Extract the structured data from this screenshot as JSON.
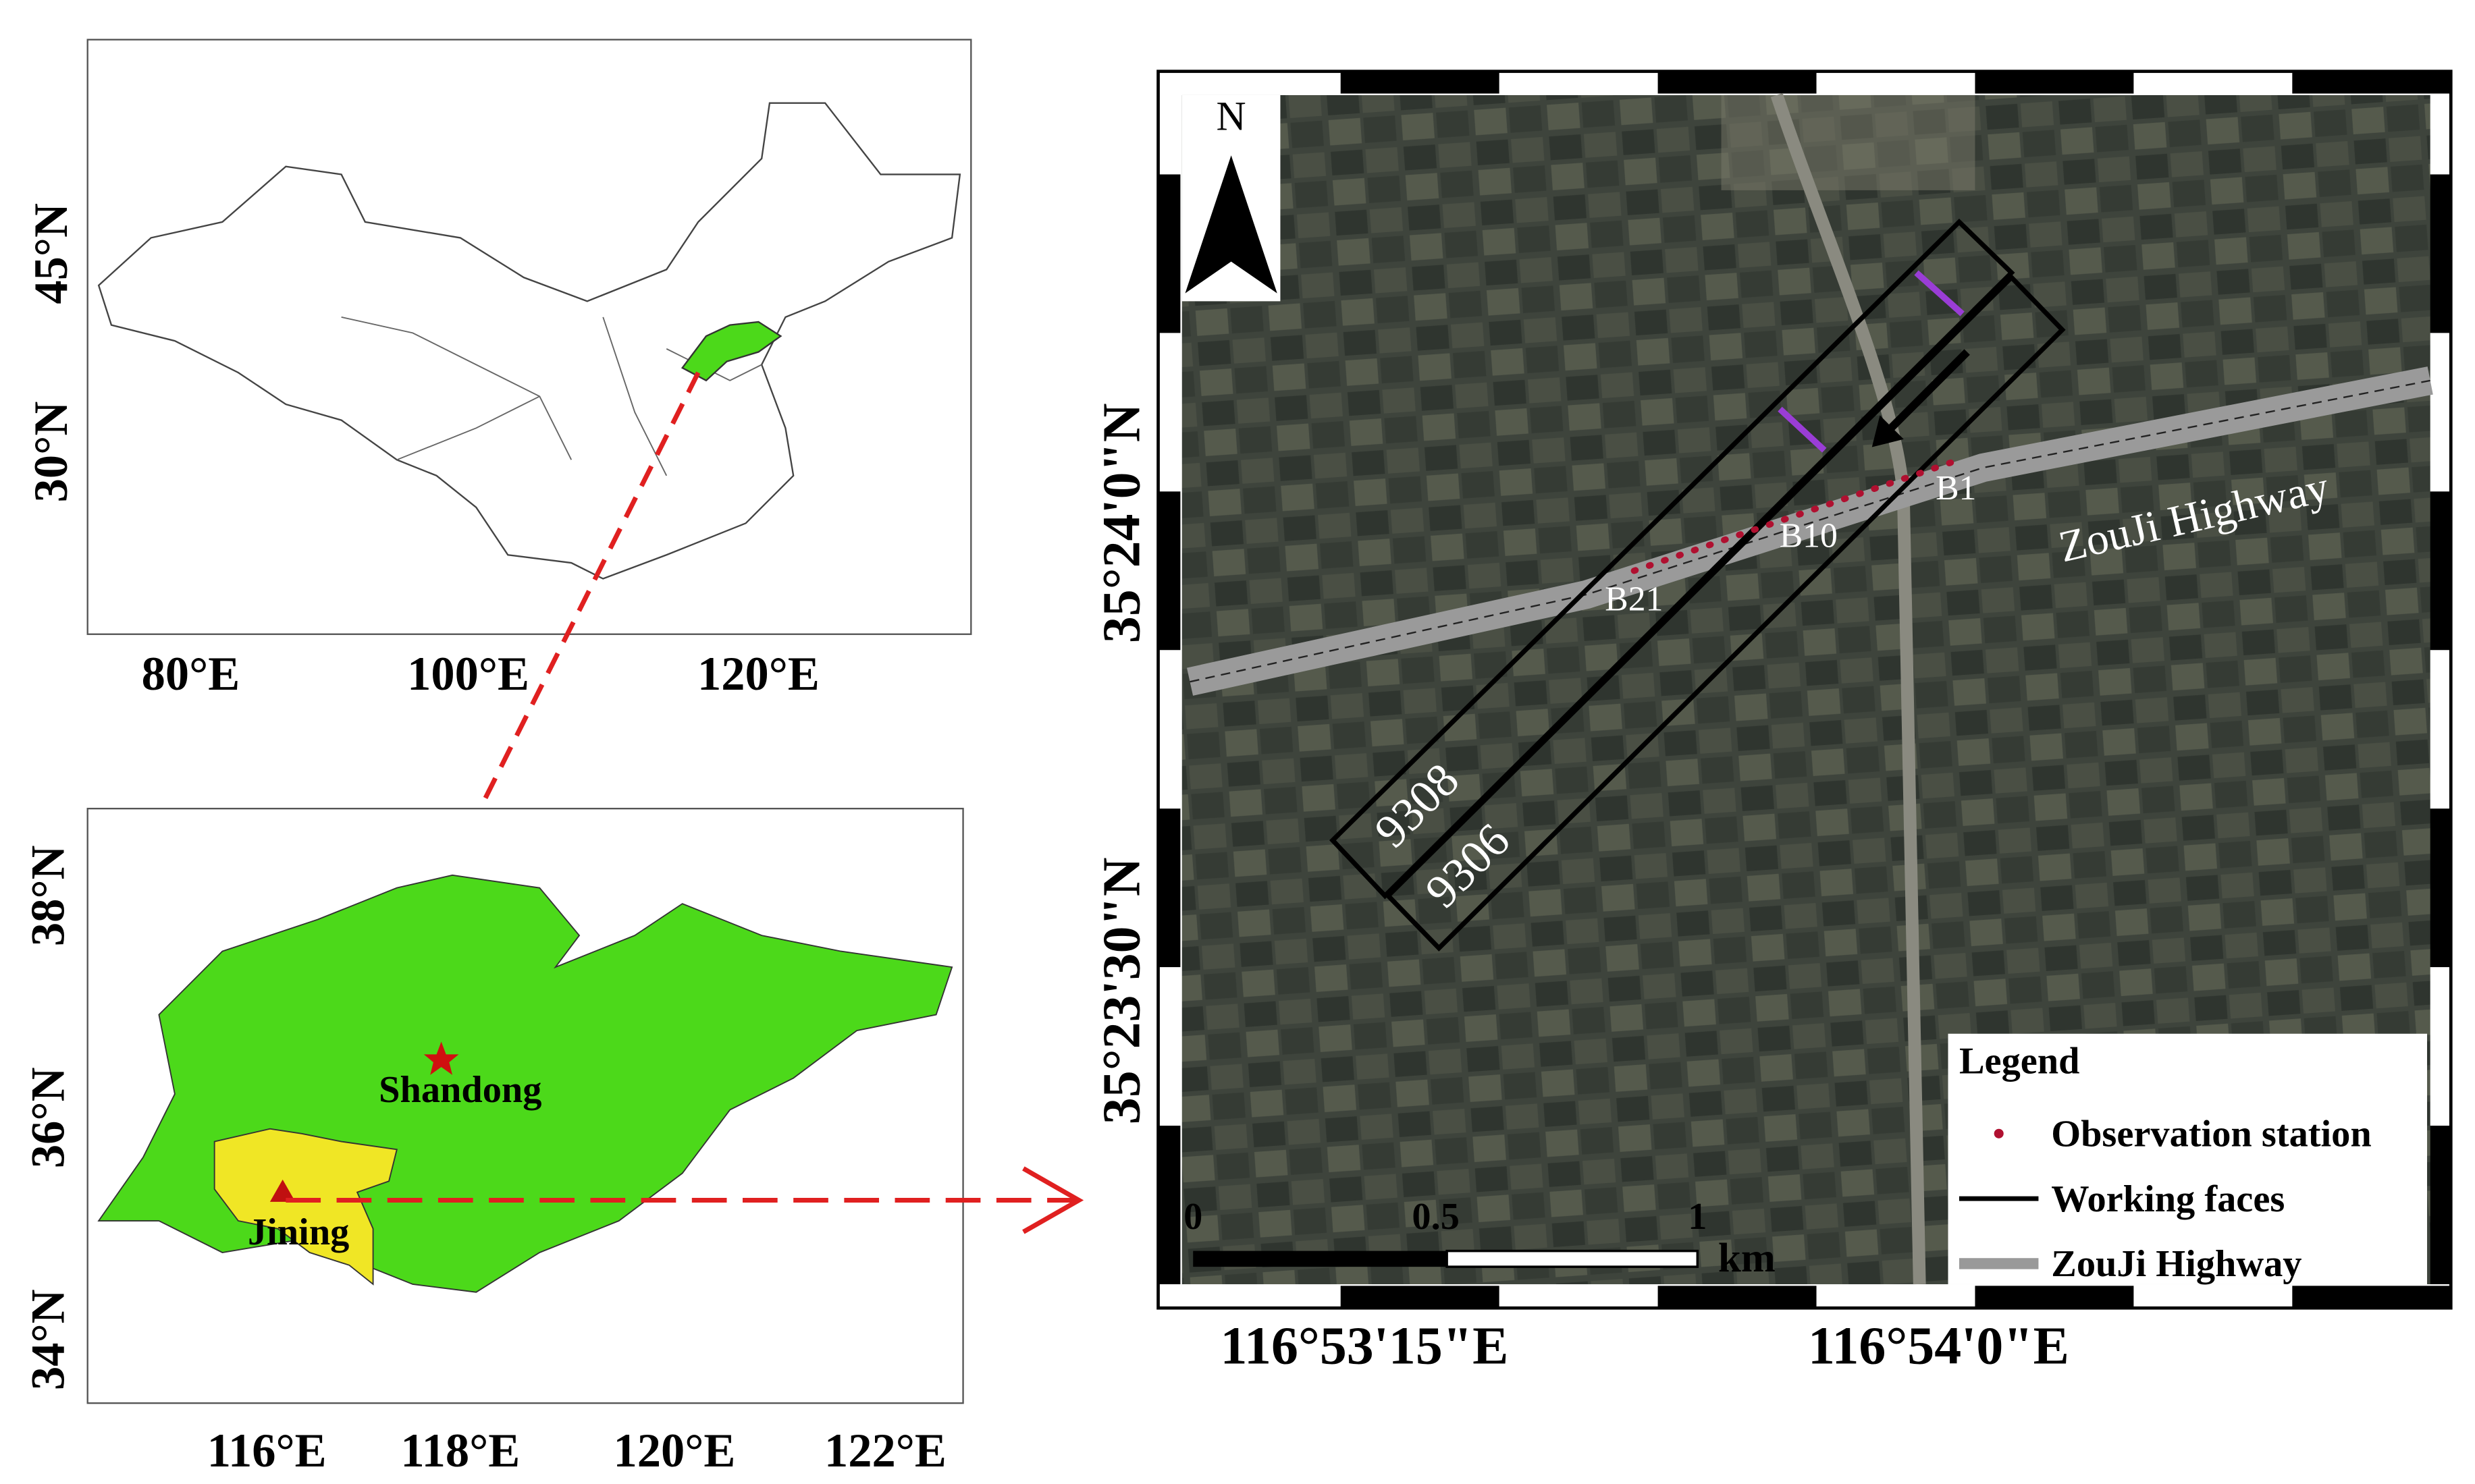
{
  "china_map": {
    "x_labels": [
      "80°E",
      "100°E",
      "120°E"
    ],
    "y_labels": [
      "45°N",
      "30°N"
    ]
  },
  "shandong_map": {
    "x_labels": [
      "116°E",
      "118°E",
      "120°E",
      "122°E"
    ],
    "y_labels": [
      "38°N",
      "36°N",
      "34°N"
    ],
    "places": [
      "Shandong",
      "Jining"
    ]
  },
  "study_area": {
    "north": "N",
    "x_labels": [
      "116°53'15\"E",
      "116°54'0\"E"
    ],
    "y_labels": [
      "35°24'0\"N",
      "35°23'30\"N"
    ],
    "working_faces": [
      "9308",
      "9306"
    ],
    "stations": [
      "B1",
      "B10",
      "B21"
    ],
    "road": "ZouJi Highway",
    "scale_bar": {
      "ticks": [
        0,
        0.5,
        1
      ],
      "unit": "km"
    },
    "legend": {
      "title": "Legend",
      "items": [
        "Observation station",
        "Working faces",
        "ZouJi Highway"
      ]
    }
  }
}
